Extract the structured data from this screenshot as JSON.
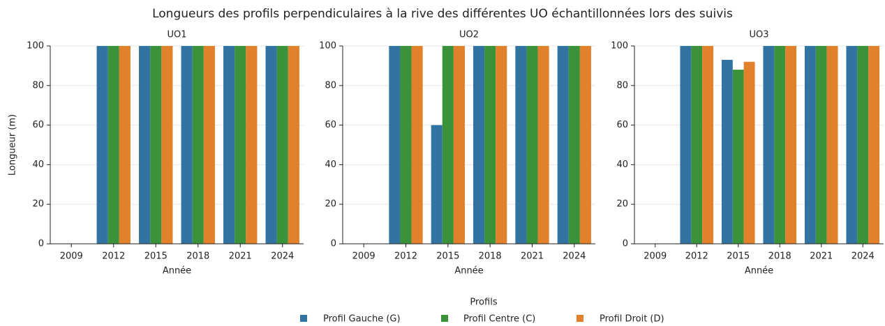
{
  "title": "Longueurs des profils perpendiculaires à la rive des différentes UO échantillonnées lors des suivis",
  "legend_title": "Profils",
  "chart_data": [
    {
      "type": "bar",
      "title": "UO1",
      "x_label": "Année",
      "y_label": "Longueur (m)",
      "categories": [
        "2009",
        "2012",
        "2015",
        "2018",
        "2021",
        "2024"
      ],
      "series": [
        {
          "name": "Profil Gauche (G)",
          "color": "#3274a1",
          "values": [
            0,
            100,
            100,
            100,
            100,
            100
          ]
        },
        {
          "name": "Profil Centre (C)",
          "color": "#3a923a",
          "values": [
            0,
            100,
            100,
            100,
            100,
            100
          ]
        },
        {
          "name": "Profil Droit (D)",
          "color": "#e1812c",
          "values": [
            0,
            100,
            100,
            100,
            100,
            100
          ]
        }
      ],
      "ylim": [
        0,
        100
      ],
      "yticks": [
        0,
        20,
        40,
        60,
        80,
        100
      ],
      "grid": true
    },
    {
      "type": "bar",
      "title": "UO2",
      "x_label": "Année",
      "categories": [
        "2009",
        "2012",
        "2015",
        "2018",
        "2021",
        "2024"
      ],
      "series": [
        {
          "name": "Profil Gauche (G)",
          "color": "#3274a1",
          "values": [
            0,
            100,
            60,
            100,
            100,
            100
          ]
        },
        {
          "name": "Profil Centre (C)",
          "color": "#3a923a",
          "values": [
            0,
            100,
            100,
            100,
            100,
            100
          ]
        },
        {
          "name": "Profil Droit (D)",
          "color": "#e1812c",
          "values": [
            0,
            100,
            100,
            100,
            100,
            100
          ]
        }
      ],
      "ylim": [
        0,
        100
      ],
      "yticks": [
        0,
        20,
        40,
        60,
        80,
        100
      ],
      "grid": true
    },
    {
      "type": "bar",
      "title": "UO3",
      "x_label": "Année",
      "categories": [
        "2009",
        "2012",
        "2015",
        "2018",
        "2021",
        "2024"
      ],
      "series": [
        {
          "name": "Profil Gauche (G)",
          "color": "#3274a1",
          "values": [
            0,
            100,
            93,
            100,
            100,
            100
          ]
        },
        {
          "name": "Profil Centre (C)",
          "color": "#3a923a",
          "values": [
            0,
            100,
            88,
            100,
            100,
            100
          ]
        },
        {
          "name": "Profil Droit (D)",
          "color": "#e1812c",
          "values": [
            0,
            100,
            92,
            100,
            100,
            100
          ]
        }
      ],
      "ylim": [
        0,
        100
      ],
      "yticks": [
        0,
        20,
        40,
        60,
        80,
        100
      ],
      "grid": true
    }
  ]
}
